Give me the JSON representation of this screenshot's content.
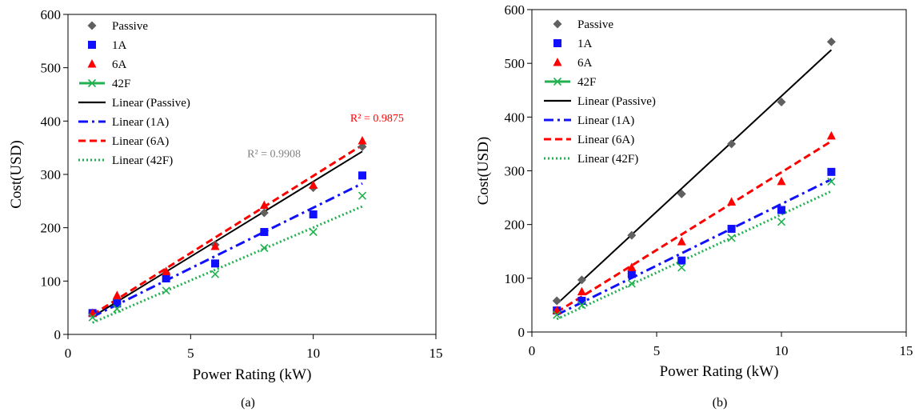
{
  "chart_data": [
    {
      "type": "scatter",
      "caption": "(a)",
      "xlabel": "Power Rating (kW)",
      "ylabel": "Cost(USD)",
      "xlim": [
        0,
        15
      ],
      "ylim": [
        0,
        600
      ],
      "xticks": [
        "0",
        "5",
        "10",
        "15"
      ],
      "yticks": [
        "0",
        "100",
        "200",
        "300",
        "400",
        "500",
        "600"
      ],
      "legend_position": "top-left",
      "x": [
        1,
        2,
        4,
        6,
        8,
        10,
        12
      ],
      "series": [
        {
          "name": "Passive",
          "marker": "diamond",
          "color": "#606060",
          "values": [
            40,
            65,
            115,
            168,
            228,
            275,
            352
          ]
        },
        {
          "name": "1A",
          "marker": "square",
          "color": "#1010ff",
          "values": [
            40,
            58,
            105,
            133,
            192,
            225,
            298
          ]
        },
        {
          "name": "6A",
          "marker": "triangle",
          "color": "#ff0000",
          "values": [
            40,
            73,
            118,
            165,
            242,
            280,
            363
          ]
        },
        {
          "name": "42F",
          "marker": "x",
          "color": "#22b050",
          "values": [
            32,
            48,
            82,
            113,
            162,
            192,
            260
          ]
        }
      ],
      "trendlines": [
        {
          "name": "Linear (Passive)",
          "style": "solid",
          "color": "#000000",
          "from": [
            1,
            33
          ],
          "to": [
            12,
            343
          ]
        },
        {
          "name": "Linear (1A)",
          "style": "dashdot",
          "color": "#1010ff",
          "from": [
            1,
            33
          ],
          "to": [
            12,
            283
          ]
        },
        {
          "name": "Linear (6A)",
          "style": "dashed",
          "color": "#ff0000",
          "from": [
            1,
            37
          ],
          "to": [
            12,
            355
          ]
        },
        {
          "name": "Linear (42F)",
          "style": "dotted",
          "color": "#22b050",
          "from": [
            1,
            22
          ],
          "to": [
            12,
            240
          ]
        }
      ],
      "legend_symbol_42F": "line-x",
      "annotations": [
        {
          "text": "R² = 0.9875",
          "color": "#ff0000",
          "at": [
            12.6,
            399
          ]
        },
        {
          "text": "R² = 0.9908",
          "color": "#808080",
          "at": [
            8.4,
            332
          ]
        }
      ]
    },
    {
      "type": "scatter",
      "caption": "(b)",
      "xlabel": "Power Rating (kW)",
      "ylabel": "Cost(USD)",
      "xlim": [
        0,
        15
      ],
      "ylim": [
        0,
        600
      ],
      "xticks": [
        "0",
        "5",
        "10",
        "15"
      ],
      "yticks": [
        "0",
        "100",
        "200",
        "300",
        "400",
        "500",
        "600"
      ],
      "legend_position": "top-left",
      "x": [
        1,
        2,
        4,
        6,
        8,
        10,
        12
      ],
      "series": [
        {
          "name": "Passive",
          "marker": "diamond",
          "color": "#606060",
          "values": [
            58,
            97,
            180,
            257,
            350,
            428,
            540
          ]
        },
        {
          "name": "1A",
          "marker": "square",
          "color": "#1010ff",
          "values": [
            40,
            58,
            108,
            133,
            192,
            227,
            298
          ]
        },
        {
          "name": "6A",
          "marker": "triangle",
          "color": "#ff0000",
          "values": [
            40,
            75,
            120,
            168,
            242,
            280,
            365
          ]
        },
        {
          "name": "42F",
          "marker": "x",
          "color": "#22b050",
          "values": [
            32,
            50,
            90,
            120,
            175,
            205,
            280
          ]
        }
      ],
      "trendlines": [
        {
          "name": "Linear (Passive)",
          "style": "solid",
          "color": "#000000",
          "from": [
            1,
            52
          ],
          "to": [
            12,
            525
          ]
        },
        {
          "name": "Linear (1A)",
          "style": "dashdot",
          "color": "#1010ff",
          "from": [
            1,
            32
          ],
          "to": [
            12,
            284
          ]
        },
        {
          "name": "Linear (6A)",
          "style": "dashed",
          "color": "#ff0000",
          "from": [
            1,
            37
          ],
          "to": [
            12,
            355
          ]
        },
        {
          "name": "Linear (42F)",
          "style": "dotted",
          "color": "#22b050",
          "from": [
            1,
            24
          ],
          "to": [
            12,
            262
          ]
        }
      ],
      "legend_symbol_42F": "line-x",
      "annotations": []
    }
  ]
}
